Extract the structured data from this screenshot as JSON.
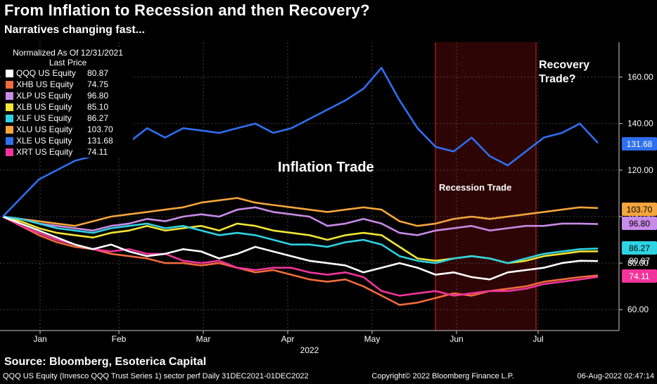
{
  "header": {
    "title": "From Inflation to Recession and then Recovery?",
    "subtitle": "Narratives changing fast..."
  },
  "legend": {
    "head1": "Normalized As Of 12/31/2021",
    "head2": "Last Price"
  },
  "annotations": {
    "inflation": "Inflation Trade",
    "recession": "Recession Trade",
    "recovery1": "Recovery",
    "recovery2": "Trade?"
  },
  "source": "Source: Bloomberg, Esoterica Capital",
  "footer": {
    "left": "QQQ US Equity (Invesco QQQ Trust Series 1) sector perf  Daily 31DEC2021-01DEC2022",
    "center": "Copyright© 2022 Bloomberg Finance L.P.",
    "right": "06-Aug-2022 02:47:14"
  },
  "chart_data": {
    "type": "line",
    "x_axis": {
      "ticks": [
        "Jan",
        "Feb",
        "Mar",
        "Apr",
        "May",
        "Jun",
        "Jul"
      ],
      "year_label": "2022"
    },
    "y_axis": {
      "ticks": [
        60,
        80,
        100,
        120,
        140,
        160
      ],
      "ylim": [
        51,
        175
      ]
    },
    "grid": true,
    "shaded_region": {
      "start": "Jun",
      "end": "Jul"
    },
    "colors": {
      "QQQ": "#ffffff",
      "XHB": "#f26b3a",
      "XLP": "#c98be8",
      "XLB": "#f2e536",
      "XLF": "#2ed3e3",
      "XLU": "#f4a53c",
      "XLE": "#2f6ff0",
      "XRT": "#f2349b"
    },
    "series": [
      {
        "name": "QQQ US Equity",
        "last": 80.87,
        "last_label": "80.87",
        "values": [
          100,
          97,
          94,
          91,
          88,
          86,
          88,
          85,
          83,
          84,
          86,
          85,
          82,
          84,
          87,
          85,
          83,
          81,
          80,
          79,
          76,
          78,
          80,
          78,
          75,
          76,
          74,
          73,
          76,
          77,
          78,
          80,
          81,
          80.87
        ]
      },
      {
        "name": "XHB US Equity",
        "last": 74.75,
        "last_label": "74.75",
        "values": [
          100,
          96,
          92,
          89,
          87,
          86,
          84,
          83,
          82,
          80,
          80,
          79,
          80,
          78,
          76,
          77,
          75,
          73,
          72,
          73,
          70,
          66,
          62,
          63,
          65,
          67,
          66,
          68,
          69,
          70,
          72,
          73,
          74,
          74.75
        ]
      },
      {
        "name": "XLP US Equity",
        "last": 96.8,
        "last_label": "96.80",
        "values": [
          100,
          99,
          97,
          96,
          95,
          94,
          96,
          97,
          99,
          98,
          100,
          101,
          100,
          103,
          104,
          102,
          101,
          100,
          96,
          97,
          99,
          97,
          93,
          92,
          94,
          95,
          96,
          94,
          95,
          96,
          96,
          97,
          97,
          96.8
        ]
      },
      {
        "name": "XLB US Equity",
        "last": 85.1,
        "last_label": "85.10",
        "values": [
          100,
          98,
          95,
          93,
          92,
          91,
          93,
          94,
          96,
          94,
          95,
          96,
          94,
          97,
          96,
          94,
          93,
          92,
          90,
          92,
          93,
          92,
          87,
          82,
          81,
          82,
          83,
          82,
          80,
          81,
          83,
          84,
          85,
          85.1
        ]
      },
      {
        "name": "XLF US Equity",
        "last": 86.27,
        "last_label": "86.27",
        "values": [
          100,
          99,
          97,
          95,
          94,
          93,
          95,
          96,
          97,
          95,
          96,
          94,
          92,
          93,
          92,
          90,
          88,
          88,
          87,
          89,
          90,
          88,
          83,
          81,
          80,
          82,
          83,
          82,
          80,
          82,
          84,
          85,
          86,
          86.27
        ]
      },
      {
        "name": "XLU US Equity",
        "last": 103.7,
        "last_label": "103.70",
        "values": [
          100,
          99,
          98,
          97,
          96,
          98,
          100,
          101,
          102,
          103,
          104,
          106,
          107,
          108,
          106,
          105,
          104,
          103,
          102,
          103,
          104,
          103,
          98,
          96,
          97,
          99,
          100,
          99,
          100,
          101,
          102,
          103,
          104,
          103.7
        ]
      },
      {
        "name": "XLE US Equity",
        "last": 131.68,
        "last_label": "131.68",
        "values": [
          100,
          108,
          116,
          120,
          124,
          126,
          128,
          132,
          138,
          134,
          138,
          137,
          136,
          138,
          140,
          136,
          138,
          142,
          146,
          150,
          155,
          164,
          150,
          138,
          130,
          128,
          134,
          126,
          122,
          128,
          134,
          136,
          140,
          131.68
        ]
      },
      {
        "name": "XRT US Equity",
        "last": 74.11,
        "last_label": "74.11",
        "values": [
          100,
          96,
          93,
          90,
          88,
          86,
          85,
          86,
          84,
          84,
          81,
          80,
          81,
          78,
          77,
          78,
          78,
          76,
          75,
          76,
          74,
          68,
          66,
          67,
          68,
          66,
          67,
          68,
          68,
          69,
          71,
          72,
          73,
          74.11
        ]
      }
    ]
  }
}
